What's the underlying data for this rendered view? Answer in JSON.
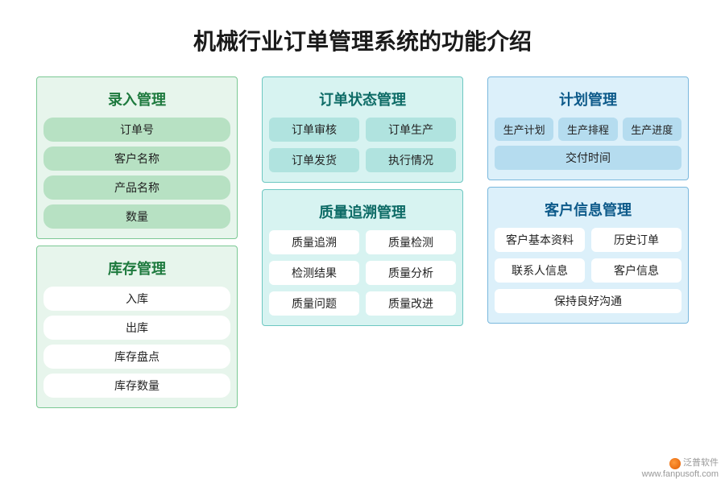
{
  "title": "机械行业订单管理系统的功能介绍",
  "colors": {
    "green_bg": "#e7f5ec",
    "green_border": "#7bc894",
    "green_title": "#1e7a3e",
    "green_fill": "#b7e1c3",
    "teal_bg": "#d7f3f1",
    "teal_border": "#6ec7c2",
    "teal_title": "#0d6b66",
    "teal_fill": "#b0e3df",
    "blue_bg": "#dcf0fa",
    "blue_border": "#7ab8dd",
    "blue_title": "#0d5a8a",
    "blue_fill": "#b5dcef",
    "white": "#ffffff"
  },
  "columns": {
    "left": {
      "sections": [
        {
          "title": "录入管理",
          "item_style": "green",
          "items": [
            "订单号",
            "客户名称",
            "产品名称",
            "数量"
          ]
        },
        {
          "title": "库存管理",
          "item_style": "white",
          "items": [
            "入库",
            "出库",
            "库存盘点",
            "库存数量"
          ]
        }
      ]
    },
    "center": {
      "sections": [
        {
          "title": "订单状态管理",
          "item_style": "teal",
          "items": [
            "订单审核",
            "订单生产",
            "订单发货",
            "执行情况"
          ]
        },
        {
          "title": "质量追溯管理",
          "item_style": "white",
          "items": [
            "质量追溯",
            "质量检测",
            "检测结果",
            "质量分析",
            "质量问题",
            "质量改进"
          ]
        }
      ]
    },
    "right": {
      "sections": [
        {
          "title": "计划管理",
          "item_style": "blue",
          "items_row1": [
            "生产计划",
            "生产排程",
            "生产进度"
          ],
          "item_wide": "交付时间"
        },
        {
          "title": "客户信息管理",
          "item_style": "white",
          "items": [
            "客户基本资料",
            "历史订单",
            "联系人信息",
            "客户信息"
          ],
          "item_wide": "保持良好沟通"
        }
      ]
    }
  },
  "watermark": {
    "brand": "泛普软件",
    "url": "www.fanpusoft.com"
  }
}
